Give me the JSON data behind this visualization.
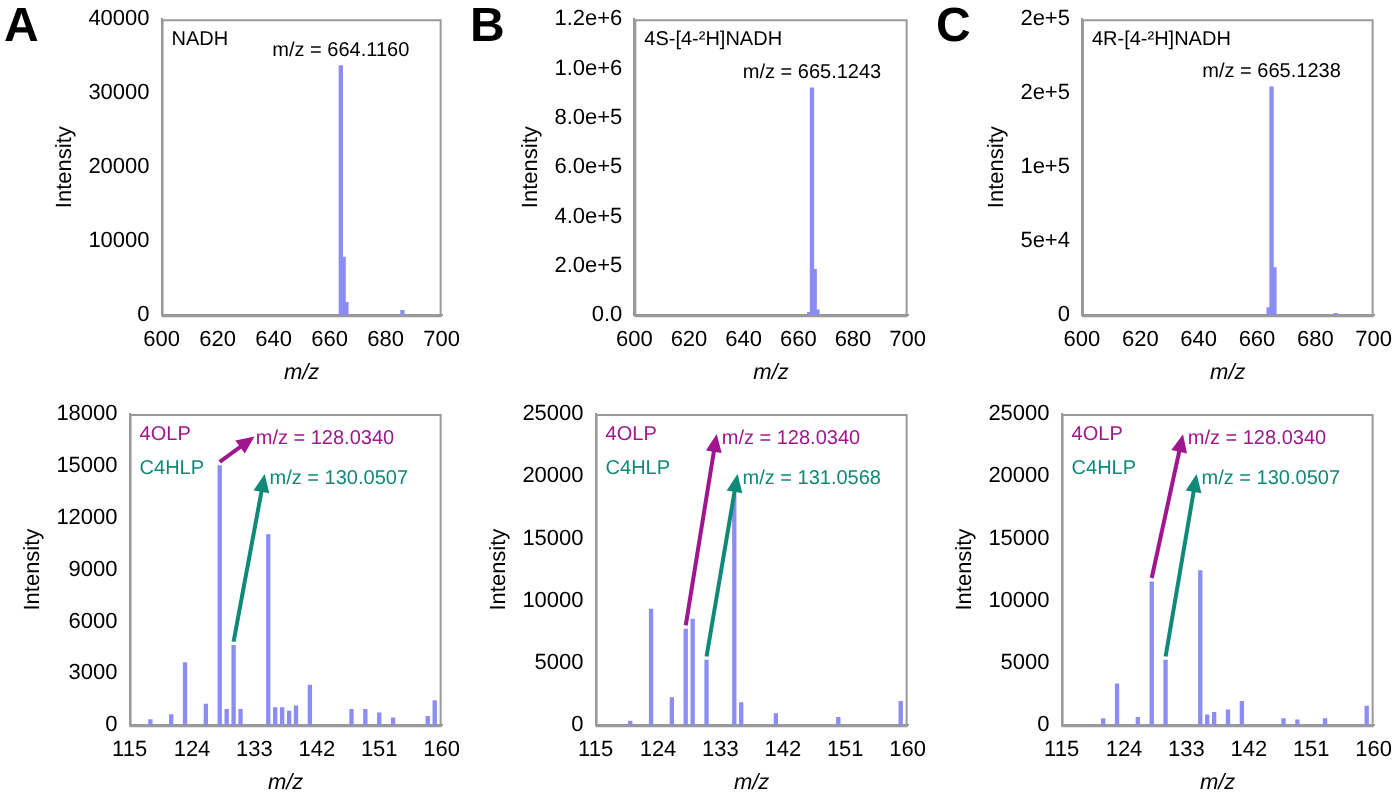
{
  "chart_data": [
    {
      "type": "bar",
      "title": "A",
      "xlabel": "m/z",
      "ylabel": "Intensity",
      "xlim": [
        600,
        700
      ],
      "xticks": [
        600,
        620,
        640,
        660,
        680,
        700
      ],
      "ylim": [
        0,
        40000
      ],
      "yticks": [
        0,
        10000,
        20000,
        30000,
        40000
      ],
      "grid": false,
      "legend": false,
      "x": [
        664,
        665,
        666,
        686
      ],
      "values": [
        33700,
        7800,
        1700,
        600
      ],
      "color": "#8c8cf5",
      "annotations": [
        "NADH",
        {
          "text": "m/z = 664.1160",
          "x": 664,
          "y": 33700
        }
      ]
    },
    {
      "type": "bar",
      "title": "B",
      "xlabel": "m/z",
      "ylabel": "Intensity",
      "xlim": [
        600,
        700
      ],
      "xticks": [
        600,
        620,
        640,
        660,
        680,
        700
      ],
      "ylim": [
        0,
        1200000
      ],
      "yticks": [
        {
          "value": 0,
          "label": "0.0"
        },
        {
          "value": 200000,
          "label": "2.0e+5"
        },
        {
          "value": 400000,
          "label": "4.0e+5"
        },
        {
          "value": 600000,
          "label": "6.0e+5"
        },
        {
          "value": 800000,
          "label": "8.0e+5"
        },
        {
          "value": 1000000,
          "label": "1.0e+6"
        },
        {
          "value": 1200000,
          "label": "1.2e+6"
        }
      ],
      "grid": false,
      "legend": false,
      "x": [
        664,
        665,
        666,
        667
      ],
      "values": [
        10000,
        920000,
        185000,
        20000
      ],
      "color": "#8c8cf5",
      "annotations": [
        "4S-[4-²H]NADH",
        {
          "text": "m/z = 665.1243",
          "x": 665,
          "y": 920000
        }
      ]
    },
    {
      "type": "bar",
      "title": "C",
      "xlabel": "m/z",
      "ylabel": "Intensity",
      "xlim": [
        600,
        700
      ],
      "xticks": [
        600,
        620,
        640,
        660,
        680,
        700
      ],
      "ylim": [
        0,
        200000
      ],
      "yticks": [
        0,
        {
          "value": 50000,
          "label": "5e+4"
        },
        {
          "value": 100000,
          "label": "1e+5"
        },
        {
          "value": 150000,
          "label": "2e+5"
        },
        {
          "value": 200000,
          "label": "2e+5"
        }
      ],
      "grid": false,
      "legend": false,
      "x": [
        664,
        665,
        666,
        687
      ],
      "values": [
        5000,
        154000,
        32000,
        1000
      ],
      "color": "#8c8cf5",
      "annotations": [
        "4R-[4-²H]NADH",
        {
          "text": "m/z = 665.1238",
          "x": 665,
          "y": 154000
        }
      ]
    },
    {
      "type": "bar",
      "xlabel": "m/z",
      "ylabel": "Intensity",
      "xlim": [
        115,
        160
      ],
      "xticks": [
        115,
        124,
        133,
        142,
        151,
        160
      ],
      "ylim": [
        0,
        18000
      ],
      "yticks": [
        0,
        3000,
        6000,
        9000,
        12000,
        15000,
        18000
      ],
      "grid": false,
      "legend": false,
      "x": [
        118,
        121,
        123,
        126,
        128,
        129,
        130,
        131,
        135,
        136,
        137,
        138,
        139,
        141,
        147,
        149,
        151,
        153,
        158,
        159
      ],
      "values": [
        300,
        600,
        3600,
        1200,
        15000,
        900,
        4600,
        900,
        11000,
        1000,
        1000,
        800,
        1100,
        2300,
        900,
        900,
        700,
        400,
        500,
        1400
      ],
      "color": "#8c8cf5",
      "annotations": [
        "4OLP",
        "C4HLP",
        {
          "text": "m/z = 128.0340",
          "x": 128,
          "y": 15000
        },
        {
          "text": "m/z = 130.0507",
          "x": 130,
          "y": 4600
        }
      ]
    },
    {
      "type": "bar",
      "xlabel": "m/z",
      "ylabel": "Intensity",
      "xlim": [
        115,
        160
      ],
      "xticks": [
        115,
        124,
        133,
        142,
        151,
        160
      ],
      "ylim": [
        0,
        25000
      ],
      "yticks": [
        0,
        5000,
        10000,
        15000,
        20000,
        25000
      ],
      "grid": false,
      "legend": false,
      "x": [
        120,
        123,
        126,
        128,
        129,
        131,
        135,
        136,
        141,
        150,
        159
      ],
      "values": [
        300,
        9300,
        2200,
        7700,
        8500,
        5200,
        18500,
        1800,
        900,
        600,
        1900
      ],
      "color": "#8c8cf5",
      "annotations": [
        "4OLP",
        "C4HLP",
        {
          "text": "m/z = 128.0340",
          "x": 128,
          "y": 7700
        },
        {
          "text": "m/z = 131.0568",
          "x": 131,
          "y": 5200
        }
      ]
    },
    {
      "type": "bar",
      "xlabel": "m/z",
      "ylabel": "Intensity",
      "xlim": [
        115,
        160
      ],
      "xticks": [
        115,
        124,
        133,
        142,
        151,
        160
      ],
      "ylim": [
        0,
        25000
      ],
      "yticks": [
        0,
        5000,
        10000,
        15000,
        20000,
        25000
      ],
      "grid": false,
      "legend": false,
      "x": [
        121,
        123,
        126,
        128,
        130,
        135,
        136,
        137,
        139,
        141,
        147,
        149,
        153,
        159
      ],
      "values": [
        500,
        3300,
        600,
        11500,
        5200,
        12400,
        800,
        1000,
        1200,
        1900,
        500,
        400,
        500,
        1500
      ],
      "color": "#8c8cf5",
      "annotations": [
        "4OLP",
        "C4HLP",
        {
          "text": "m/z = 128.0340",
          "x": 128,
          "y": 11500
        },
        {
          "text": "m/z = 130.0507",
          "x": 130,
          "y": 5200
        }
      ]
    }
  ]
}
